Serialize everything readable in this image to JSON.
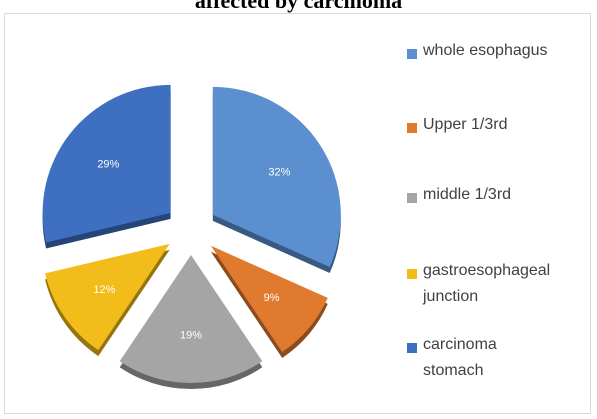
{
  "header": {
    "title_partial": "affected by carcinoma"
  },
  "chart_data": {
    "type": "pie",
    "exploded": true,
    "title": "affected by carcinoma",
    "legend_position": "right",
    "slices": [
      {
        "label": "whole esophagus",
        "value": 32,
        "value_label": "32%",
        "color": "#5b8fd0"
      },
      {
        "label": "Upper 1/3rd",
        "value": 9,
        "value_label": "9%",
        "color": "#e07a2e"
      },
      {
        "label": "middle 1/3rd",
        "value": 19,
        "value_label": "19%",
        "color": "#a5a5a5"
      },
      {
        "label": "gastroesophageal junction",
        "value": 12,
        "value_label": "12%",
        "color": "#f2bc1a"
      },
      {
        "label": "carcinoma stomach",
        "value": 29,
        "value_label": "29%",
        "color": "#3e6fc0"
      }
    ]
  }
}
